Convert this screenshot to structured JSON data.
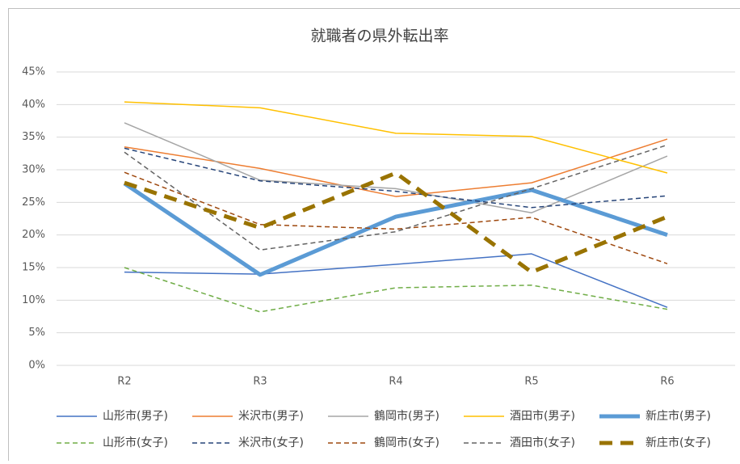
{
  "chart_data": {
    "type": "line",
    "title": "就職者の県外転出率",
    "categories": [
      "R2",
      "R3",
      "R4",
      "R5",
      "R6"
    ],
    "series": [
      {
        "name": "山形市(男子)",
        "color": "#4472c4",
        "width": 1.5,
        "dash": "solid",
        "values": [
          14.3,
          14.0,
          15.5,
          17.1,
          8.9
        ]
      },
      {
        "name": "米沢市(男子)",
        "color": "#ed7d31",
        "width": 1.5,
        "dash": "solid",
        "values": [
          33.5,
          30.2,
          25.9,
          28.0,
          34.7
        ]
      },
      {
        "name": "鶴岡市(男子)",
        "color": "#a5a5a5",
        "width": 1.5,
        "dash": "solid",
        "values": [
          37.2,
          28.4,
          27.1,
          23.4,
          32.1
        ]
      },
      {
        "name": "酒田市(男子)",
        "color": "#ffc000",
        "width": 1.5,
        "dash": "solid",
        "values": [
          40.4,
          39.5,
          35.6,
          35.1,
          29.5
        ]
      },
      {
        "name": "新庄市(男子)",
        "color": "#5b9bd5",
        "width": 5,
        "dash": "solid",
        "values": [
          27.9,
          13.9,
          22.8,
          26.9,
          20.0
        ]
      },
      {
        "name": "山形市(女子)",
        "color": "#70ad47",
        "width": 1.5,
        "dash": "dashed",
        "values": [
          15.0,
          8.2,
          11.9,
          12.3,
          8.6
        ]
      },
      {
        "name": "米沢市(女子)",
        "color": "#264478",
        "width": 1.5,
        "dash": "dashed",
        "values": [
          33.3,
          28.3,
          26.7,
          24.2,
          26.0
        ]
      },
      {
        "name": "鶴岡市(女子)",
        "color": "#9e480e",
        "width": 1.5,
        "dash": "dashed",
        "values": [
          29.6,
          21.6,
          20.9,
          22.7,
          15.6
        ]
      },
      {
        "name": "酒田市(女子)",
        "color": "#636363",
        "width": 1.5,
        "dash": "dashed",
        "values": [
          32.7,
          17.7,
          20.5,
          27.1,
          33.8
        ]
      },
      {
        "name": "新庄市(女子)",
        "color": "#997300",
        "width": 5,
        "dash": "dashed",
        "values": [
          28.0,
          21.1,
          29.5,
          14.3,
          22.8
        ]
      }
    ],
    "ylim": [
      0,
      45
    ],
    "yticks": [
      {
        "value": 0,
        "label": "0%"
      },
      {
        "value": 5,
        "label": "5%"
      },
      {
        "value": 10,
        "label": "10%"
      },
      {
        "value": 15,
        "label": "15%"
      },
      {
        "value": 20,
        "label": "20%"
      },
      {
        "value": 25,
        "label": "25%"
      },
      {
        "value": 30,
        "label": "30%"
      },
      {
        "value": 35,
        "label": "35%"
      },
      {
        "value": 40,
        "label": "40%"
      },
      {
        "value": 45,
        "label": "45%"
      }
    ],
    "grid": true,
    "legend": "bottom"
  }
}
